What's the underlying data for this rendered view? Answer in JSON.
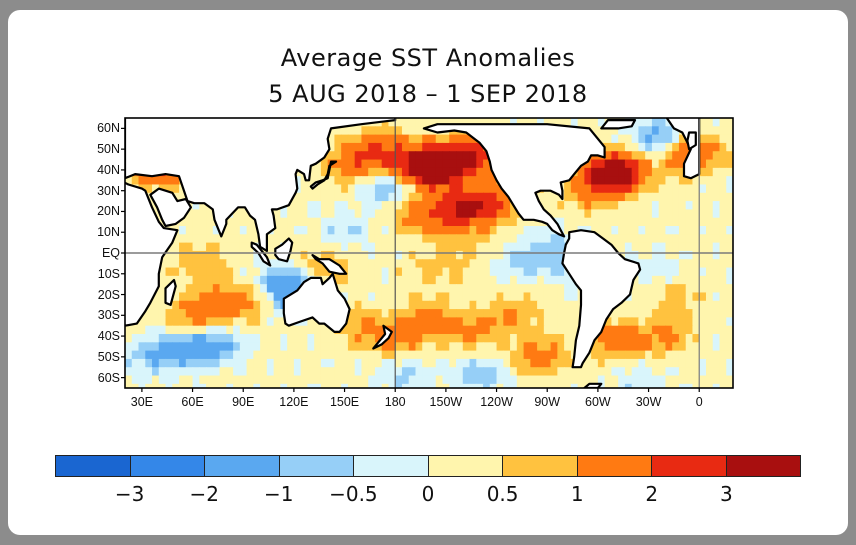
{
  "title_line1": "Average SST Anomalies",
  "title_line2": "5 AUG 2018 – 1 SEP 2018",
  "lat_labels": [
    "60N",
    "50N",
    "40N",
    "30N",
    "20N",
    "10N",
    "EQ",
    "10S",
    "20S",
    "30S",
    "40S",
    "50S",
    "60S"
  ],
  "lat_values": [
    60,
    50,
    40,
    30,
    20,
    10,
    0,
    -10,
    -20,
    -30,
    -40,
    -50,
    -60
  ],
  "lon_labels": [
    "30E",
    "60E",
    "90E",
    "120E",
    "150E",
    "180",
    "150W",
    "120W",
    "90W",
    "60W",
    "30W",
    "0"
  ],
  "lon_values": [
    30,
    60,
    90,
    120,
    150,
    180,
    210,
    240,
    270,
    300,
    330,
    360
  ],
  "lon_range": [
    20,
    380
  ],
  "lat_range": [
    -65,
    65
  ],
  "colorbar": {
    "colors": [
      "#1a66d1",
      "#3487e8",
      "#5aa8f0",
      "#96cff7",
      "#d9f5fb",
      "#fff5ad",
      "#ffc23f",
      "#ff7a12",
      "#e82a12",
      "#a80f0f"
    ],
    "labels": [
      "−3",
      "−2",
      "−1",
      "−0.5",
      "0",
      "0.5",
      "1",
      "2",
      "3"
    ]
  },
  "anomaly_blobs": [
    {
      "lon": 205,
      "lat": 40,
      "a": 3.0
    },
    {
      "lon": 215,
      "lat": 45,
      "a": 2.2
    },
    {
      "lon": 190,
      "lat": 43,
      "a": 2.0
    },
    {
      "lon": 170,
      "lat": 50,
      "a": 1.6
    },
    {
      "lon": 155,
      "lat": 42,
      "a": 1.3
    },
    {
      "lon": 230,
      "lat": 48,
      "a": 1.5
    },
    {
      "lon": 228,
      "lat": 22,
      "a": 2.4
    },
    {
      "lon": 212,
      "lat": 20,
      "a": 1.6
    },
    {
      "lon": 195,
      "lat": 18,
      "a": 1.2
    },
    {
      "lon": 245,
      "lat": 28,
      "a": 1.0
    },
    {
      "lon": 315,
      "lat": 40,
      "a": 3.0
    },
    {
      "lon": 305,
      "lat": 38,
      "a": 2.2
    },
    {
      "lon": 330,
      "lat": 48,
      "a": 1.3
    },
    {
      "lon": 295,
      "lat": 30,
      "a": 1.0
    },
    {
      "lon": 355,
      "lat": 48,
      "a": 2.0
    },
    {
      "lon": 40,
      "lat": 42,
      "a": 2.2
    },
    {
      "lon": 75,
      "lat": -25,
      "a": 1.3
    },
    {
      "lon": 58,
      "lat": -32,
      "a": 1.0
    },
    {
      "lon": 95,
      "lat": -22,
      "a": 1.0
    },
    {
      "lon": 200,
      "lat": -32,
      "a": 1.2
    },
    {
      "lon": 225,
      "lat": -38,
      "a": 1.0
    },
    {
      "lon": 180,
      "lat": -42,
      "a": 1.1
    },
    {
      "lon": 160,
      "lat": -35,
      "a": 0.8
    },
    {
      "lon": 310,
      "lat": -42,
      "a": 1.5
    },
    {
      "lon": 340,
      "lat": -40,
      "a": 1.0
    },
    {
      "lon": 265,
      "lat": -50,
      "a": 1.3
    },
    {
      "lon": 248,
      "lat": -30,
      "a": 0.9
    },
    {
      "lon": 140,
      "lat": -5,
      "a": 0.8
    },
    {
      "lon": 65,
      "lat": -5,
      "a": 0.8
    },
    {
      "lon": 345,
      "lat": -20,
      "a": 0.7
    },
    {
      "lon": 285,
      "lat": -5,
      "a": -0.8
    },
    {
      "lon": 120,
      "lat": -20,
      "a": -1.5
    },
    {
      "lon": 110,
      "lat": -15,
      "a": -1.2
    },
    {
      "lon": 55,
      "lat": -45,
      "a": -1.4
    },
    {
      "lon": 75,
      "lat": -45,
      "a": -1.2
    },
    {
      "lon": 35,
      "lat": -50,
      "a": -1.0
    },
    {
      "lon": 325,
      "lat": 45,
      "a": -1.5
    },
    {
      "lon": 335,
      "lat": 55,
      "a": -1.8
    },
    {
      "lon": 175,
      "lat": 32,
      "a": -1.2
    },
    {
      "lon": 150,
      "lat": 10,
      "a": -0.7
    },
    {
      "lon": 255,
      "lat": -5,
      "a": -0.8
    },
    {
      "lon": 270,
      "lat": 5,
      "a": -0.6
    },
    {
      "lon": 335,
      "lat": -10,
      "a": -0.5
    },
    {
      "lon": 230,
      "lat": -58,
      "a": -1.0
    },
    {
      "lon": 185,
      "lat": -58,
      "a": -0.8
    },
    {
      "lon": 325,
      "lat": -62,
      "a": -0.6
    },
    {
      "lon": 220,
      "lat": 0,
      "a": 0.5
    },
    {
      "lon": 200,
      "lat": -10,
      "a": 0.5
    }
  ],
  "land_polygons": [
    {
      "name": "north-america",
      "points": [
        [
          197,
          60
        ],
        [
          205,
          58
        ],
        [
          215,
          59
        ],
        [
          222,
          58
        ],
        [
          230,
          53
        ],
        [
          234,
          49
        ],
        [
          236,
          44
        ],
        [
          237,
          40
        ],
        [
          240,
          35
        ],
        [
          243,
          31
        ],
        [
          247,
          27
        ],
        [
          250,
          23
        ],
        [
          253,
          19
        ],
        [
          256,
          16
        ],
        [
          262,
          16
        ],
        [
          267,
          15
        ],
        [
          270,
          14
        ],
        [
          273,
          11
        ],
        [
          277,
          9
        ],
        [
          280,
          8
        ],
        [
          278,
          11
        ],
        [
          276,
          14
        ],
        [
          272,
          18
        ],
        [
          268,
          21
        ],
        [
          265,
          25
        ],
        [
          263,
          29
        ],
        [
          266,
          30
        ],
        [
          272,
          30
        ],
        [
          277,
          28
        ],
        [
          279,
          26
        ],
        [
          279,
          30
        ],
        [
          278,
          34
        ],
        [
          283,
          35
        ],
        [
          286,
          38
        ],
        [
          290,
          42
        ],
        [
          294,
          44
        ],
        [
          296,
          47
        ],
        [
          300,
          47
        ],
        [
          304,
          46
        ],
        [
          304,
          51
        ],
        [
          300,
          55
        ],
        [
          295,
          60
        ],
        [
          270,
          62
        ],
        [
          245,
          62
        ],
        [
          220,
          62
        ],
        [
          205,
          62
        ]
      ]
    },
    {
      "name": "greenland",
      "points": [
        [
          302,
          60
        ],
        [
          312,
          60
        ],
        [
          320,
          61
        ],
        [
          322,
          64
        ],
        [
          306,
          64
        ]
      ]
    },
    {
      "name": "south-america",
      "points": [
        [
          283,
          10
        ],
        [
          290,
          11
        ],
        [
          298,
          10
        ],
        [
          303,
          7
        ],
        [
          308,
          4
        ],
        [
          312,
          0
        ],
        [
          316,
          -3
        ],
        [
          324,
          -5
        ],
        [
          325,
          -8
        ],
        [
          321,
          -13
        ],
        [
          319,
          -20
        ],
        [
          314,
          -24
        ],
        [
          309,
          -27
        ],
        [
          305,
          -32
        ],
        [
          302,
          -38
        ],
        [
          298,
          -42
        ],
        [
          295,
          -48
        ],
        [
          291,
          -53
        ],
        [
          290,
          -55
        ],
        [
          285,
          -55
        ],
        [
          286,
          -50
        ],
        [
          287,
          -42
        ],
        [
          289,
          -35
        ],
        [
          290,
          -25
        ],
        [
          290,
          -18
        ],
        [
          287,
          -15
        ],
        [
          283,
          -10
        ],
        [
          279,
          -5
        ],
        [
          280,
          0
        ],
        [
          281,
          4
        ],
        [
          283,
          7
        ]
      ]
    },
    {
      "name": "africa",
      "points": [
        [
          17,
          35
        ],
        [
          22,
          33
        ],
        [
          30,
          31
        ],
        [
          32,
          30
        ],
        [
          36,
          22
        ],
        [
          40,
          15
        ],
        [
          43,
          12
        ],
        [
          51,
          11
        ],
        [
          48,
          5
        ],
        [
          42,
          -2
        ],
        [
          40,
          -10
        ],
        [
          40,
          -16
        ],
        [
          35,
          -24
        ],
        [
          32,
          -28
        ],
        [
          27,
          -34
        ],
        [
          20,
          -35
        ],
        [
          18,
          -30
        ],
        [
          15,
          -20
        ],
        [
          13,
          -12
        ],
        [
          9,
          -2
        ],
        [
          9,
          4
        ],
        [
          5,
          5
        ],
        [
          -5,
          5
        ],
        [
          -13,
          8
        ],
        [
          -17,
          15
        ],
        [
          -17,
          21
        ],
        [
          -10,
          30
        ],
        [
          -5,
          35
        ],
        [
          5,
          37
        ],
        [
          10,
          37
        ]
      ]
    },
    {
      "name": "eurasia",
      "points": [
        [
          20,
          36
        ],
        [
          26,
          38
        ],
        [
          36,
          37
        ],
        [
          44,
          38
        ],
        [
          52,
          37
        ],
        [
          57,
          25
        ],
        [
          61,
          24
        ],
        [
          67,
          24
        ],
        [
          72,
          21
        ],
        [
          73,
          16
        ],
        [
          77,
          8
        ],
        [
          80,
          14
        ],
        [
          80,
          16
        ],
        [
          87,
          22
        ],
        [
          91,
          22
        ],
        [
          94,
          18
        ],
        [
          97,
          16
        ],
        [
          99,
          9
        ],
        [
          100,
          3
        ],
        [
          104,
          1
        ],
        [
          104,
          9
        ],
        [
          109,
          12
        ],
        [
          108,
          18
        ],
        [
          107,
          21
        ],
        [
          110,
          21
        ],
        [
          117,
          23
        ],
        [
          121,
          29
        ],
        [
          122,
          31
        ],
        [
          121,
          38
        ],
        [
          122,
          40
        ],
        [
          126,
          38
        ],
        [
          127,
          35
        ],
        [
          129,
          35
        ],
        [
          130,
          42
        ],
        [
          133,
          43
        ],
        [
          138,
          46
        ],
        [
          141,
          50
        ],
        [
          140,
          55
        ],
        [
          142,
          60
        ],
        [
          160,
          62
        ],
        [
          180,
          64
        ],
        [
          180,
          66
        ],
        [
          20,
          66
        ]
      ]
    },
    {
      "name": "arabian-peninsula",
      "points": [
        [
          35,
          28
        ],
        [
          39,
          22
        ],
        [
          42,
          16
        ],
        [
          44,
          13
        ],
        [
          50,
          14
        ],
        [
          55,
          17
        ],
        [
          59,
          22
        ],
        [
          56,
          26
        ],
        [
          51,
          25
        ],
        [
          48,
          29
        ],
        [
          40,
          31
        ]
      ]
    },
    {
      "name": "madagascar",
      "points": [
        [
          49,
          -13
        ],
        [
          50,
          -16
        ],
        [
          47,
          -25
        ],
        [
          44,
          -24
        ],
        [
          44,
          -17
        ]
      ]
    },
    {
      "name": "australia",
      "points": [
        [
          114,
          -22
        ],
        [
          122,
          -18
        ],
        [
          126,
          -14
        ],
        [
          130,
          -12
        ],
        [
          136,
          -12
        ],
        [
          137,
          -15
        ],
        [
          141,
          -12
        ],
        [
          143,
          -10
        ],
        [
          146,
          -18
        ],
        [
          150,
          -22
        ],
        [
          153,
          -27
        ],
        [
          151,
          -34
        ],
        [
          147,
          -38
        ],
        [
          144,
          -38
        ],
        [
          138,
          -34
        ],
        [
          135,
          -34
        ],
        [
          131,
          -31
        ],
        [
          124,
          -33
        ],
        [
          117,
          -35
        ],
        [
          115,
          -34
        ],
        [
          114,
          -29
        ]
      ]
    },
    {
      "name": "new-guinea",
      "points": [
        [
          131,
          -1
        ],
        [
          135,
          -3
        ],
        [
          141,
          -3
        ],
        [
          147,
          -6
        ],
        [
          151,
          -10
        ],
        [
          147,
          -10
        ],
        [
          141,
          -9
        ],
        [
          137,
          -5
        ],
        [
          133,
          -3
        ]
      ]
    },
    {
      "name": "borneo",
      "points": [
        [
          109,
          2
        ],
        [
          113,
          4
        ],
        [
          117,
          7
        ],
        [
          119,
          5
        ],
        [
          118,
          1
        ],
        [
          116,
          -4
        ],
        [
          111,
          -3
        ],
        [
          109,
          -1
        ]
      ]
    },
    {
      "name": "sumatra",
      "points": [
        [
          95,
          5
        ],
        [
          98,
          4
        ],
        [
          104,
          -2
        ],
        [
          106,
          -6
        ],
        [
          102,
          -4
        ],
        [
          99,
          0
        ],
        [
          95,
          3
        ]
      ]
    },
    {
      "name": "japan",
      "points": [
        [
          130,
          32
        ],
        [
          133,
          34
        ],
        [
          137,
          35
        ],
        [
          140,
          36
        ],
        [
          141,
          40
        ],
        [
          142,
          44
        ],
        [
          145,
          44
        ],
        [
          141,
          42
        ],
        [
          140,
          38
        ],
        [
          138,
          35
        ],
        [
          134,
          33
        ],
        [
          131,
          31
        ]
      ]
    },
    {
      "name": "new-zealand",
      "points": [
        [
          173,
          -35
        ],
        [
          178,
          -38
        ],
        [
          176,
          -41
        ],
        [
          172,
          -44
        ],
        [
          167,
          -46
        ],
        [
          170,
          -43
        ],
        [
          174,
          -39
        ]
      ]
    },
    {
      "name": "europe-west",
      "points": [
        [
          340,
          66
        ],
        [
          345,
          60
        ],
        [
          350,
          58
        ],
        [
          355,
          50
        ],
        [
          351,
          43
        ],
        [
          351,
          37
        ],
        [
          355,
          36
        ],
        [
          360,
          38
        ],
        [
          360,
          66
        ]
      ]
    },
    {
      "name": "uk",
      "points": [
        [
          354,
          50
        ],
        [
          358,
          52
        ],
        [
          358,
          58
        ],
        [
          354,
          58
        ],
        [
          353,
          54
        ]
      ]
    },
    {
      "name": "antarctic-peninsula",
      "points": [
        [
          295,
          -63
        ],
        [
          302,
          -63
        ],
        [
          300,
          -65
        ],
        [
          292,
          -65
        ]
      ]
    }
  ]
}
